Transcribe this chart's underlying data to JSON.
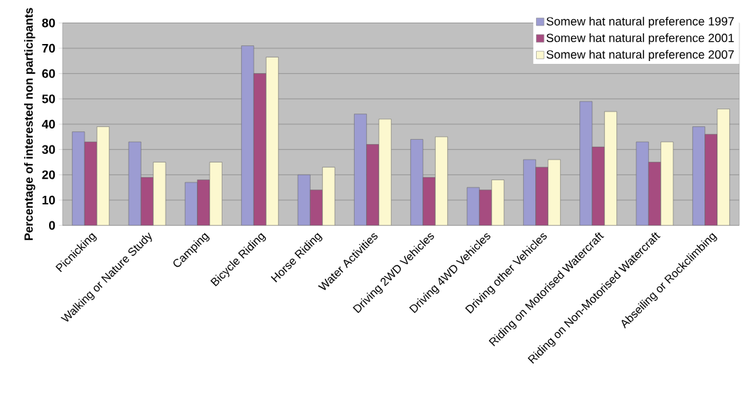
{
  "chart_data": {
    "type": "bar",
    "ylabel": "Percentage of interested non participants",
    "categories": [
      "Picnicking",
      "Walking or Nature Study",
      "Camping",
      "Bicycle Riding",
      "Horse Riding",
      "Water Activities",
      "Driving 2WD Vehicles",
      "Driving 4WD Vehicles",
      "Driving other Vehicles",
      "Riding on Motorised Watercraft",
      "Riding on Non-Motorised Watercraft",
      "Abseiling or Rockclimbing"
    ],
    "series": [
      {
        "name": "Somew hat natural preference 1997",
        "color": "#9c9cd2",
        "values": [
          37,
          33,
          17,
          71,
          20,
          44,
          34,
          15,
          26,
          49,
          33,
          39
        ]
      },
      {
        "name": "Somew hat natural preference 2001",
        "color": "#a64c80",
        "values": [
          33,
          19,
          18,
          60,
          14,
          32,
          19,
          14,
          23,
          31,
          25,
          36
        ]
      },
      {
        "name": "Somew hat natural preference 2007",
        "color": "#fcf8cf",
        "values": [
          39,
          25,
          25,
          66.5,
          23,
          42,
          35,
          18,
          26,
          45,
          33,
          46
        ]
      }
    ],
    "ylim": [
      0,
      80
    ],
    "yticks": [
      0,
      10,
      20,
      30,
      40,
      50,
      60,
      70,
      80
    ],
    "grid": "y",
    "legend": "top right"
  }
}
